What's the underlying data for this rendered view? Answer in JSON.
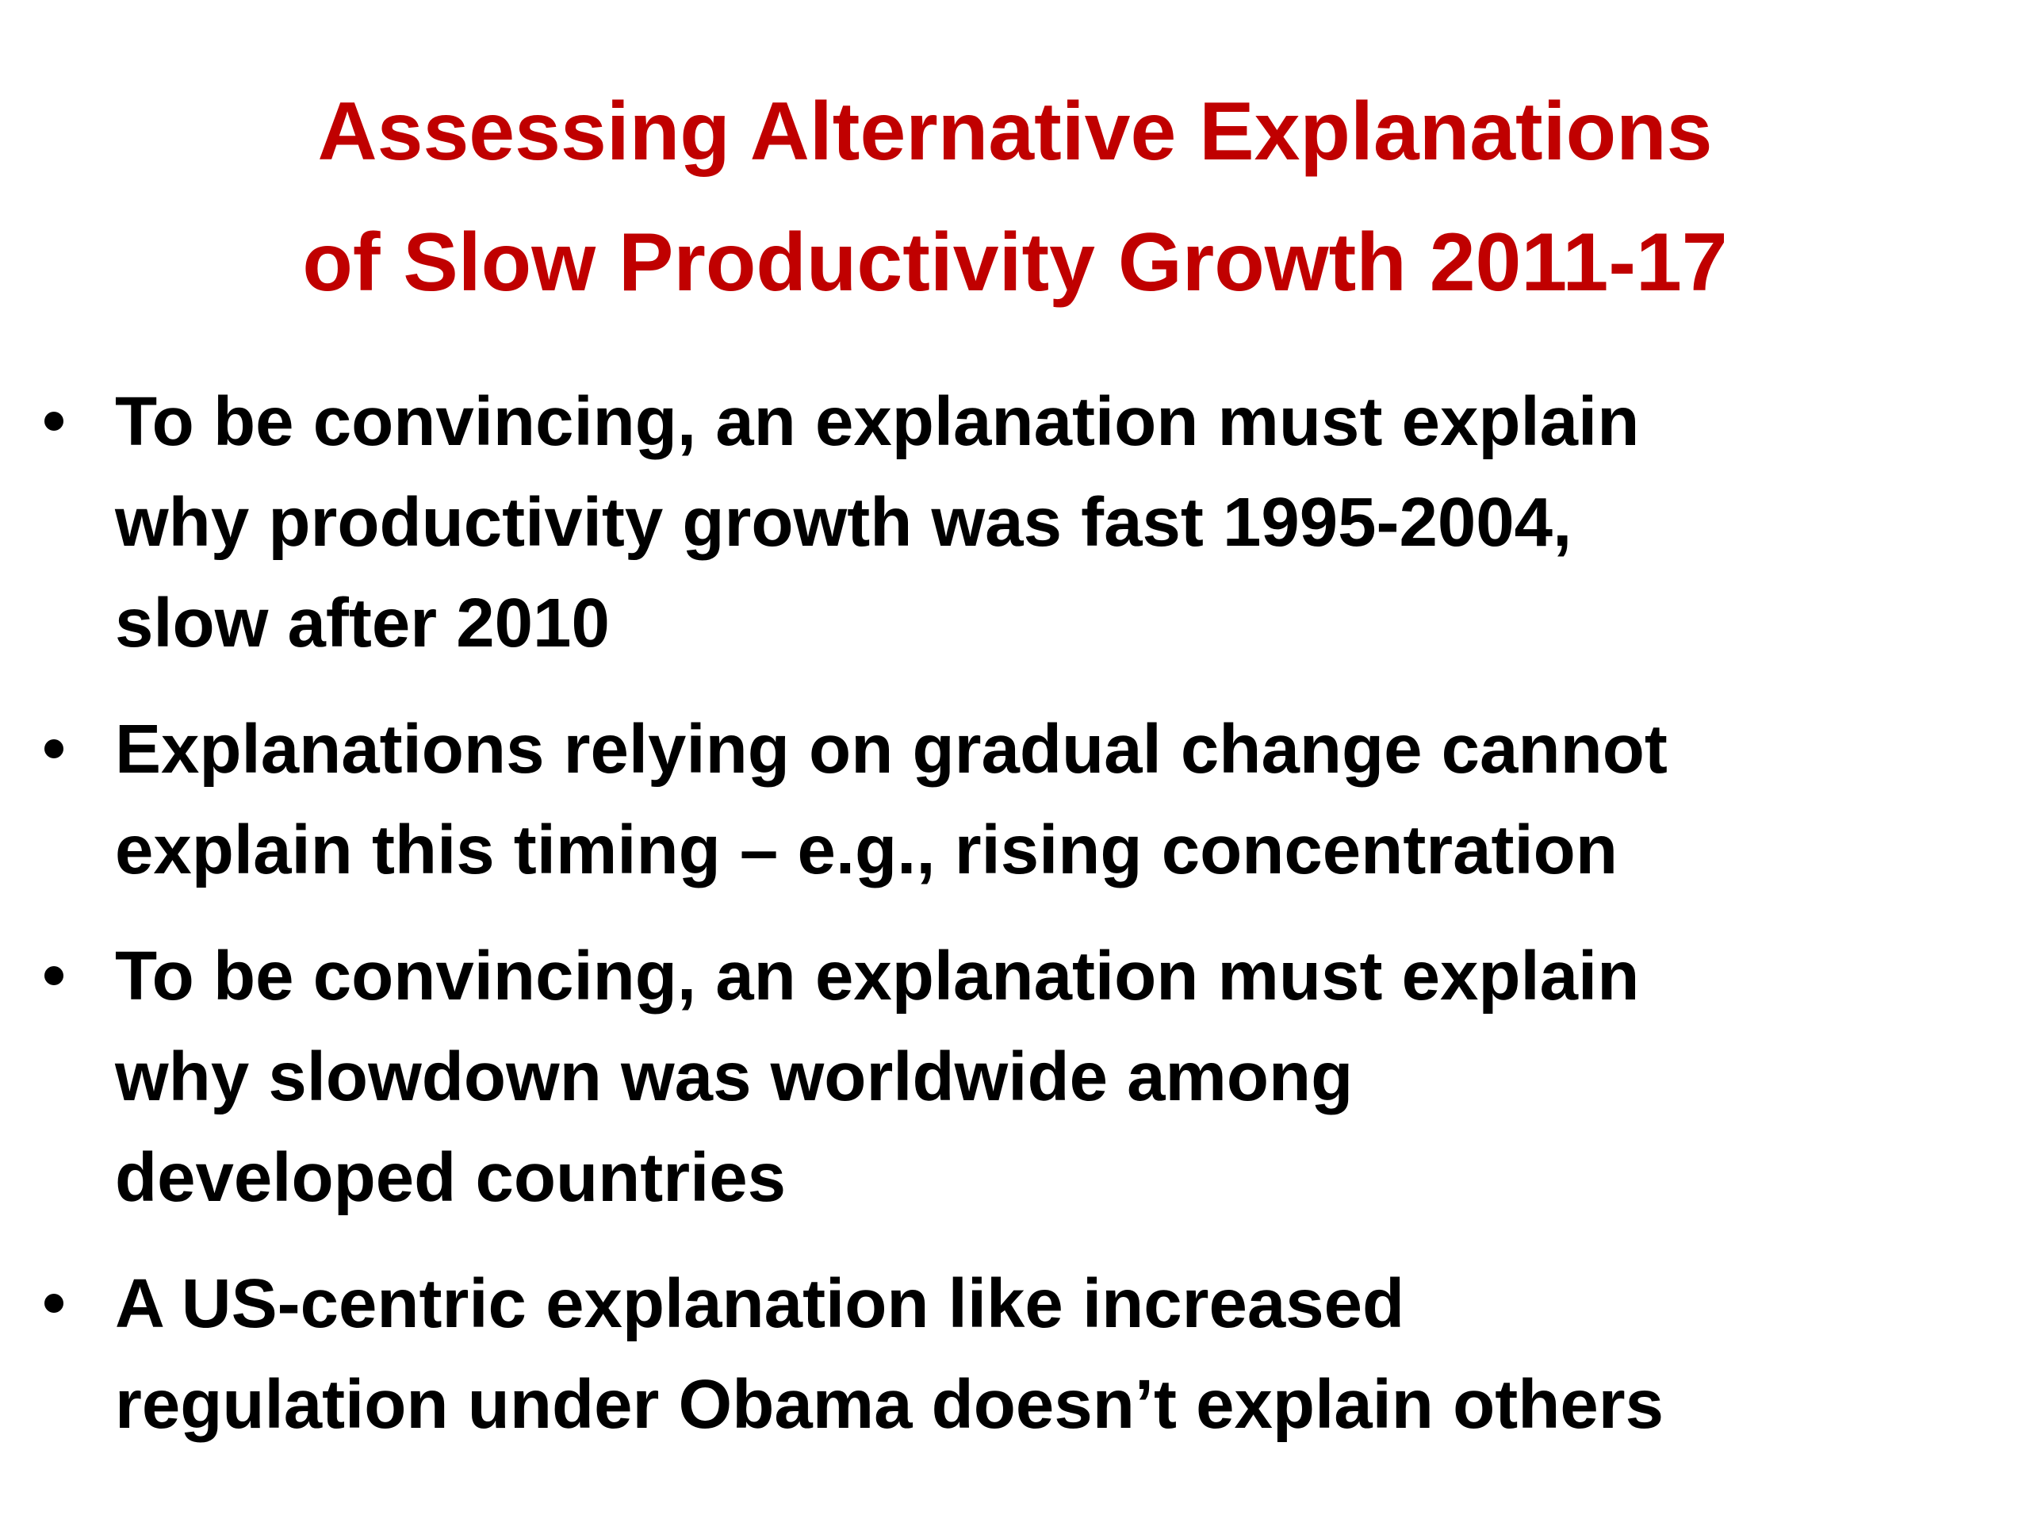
{
  "title": {
    "lines": [
      "Assessing Alternative Explanations",
      "of Slow Productivity Growth 2011-17"
    ]
  },
  "bullets": [
    {
      "lines": [
        "To be convincing, an explanation must explain",
        "why productivity growth was fast 1995-2004,",
        "slow after 2010"
      ]
    },
    {
      "lines": [
        "Explanations relying on gradual change cannot",
        "explain this timing – e.g., rising concentration"
      ]
    },
    {
      "lines": [
        "To be convincing, an explanation must explain",
        "why slowdown was worldwide among",
        "developed countries"
      ]
    },
    {
      "lines": [
        "A US-centric explanation like increased",
        "regulation under Obama doesn’t explain others"
      ]
    }
  ]
}
